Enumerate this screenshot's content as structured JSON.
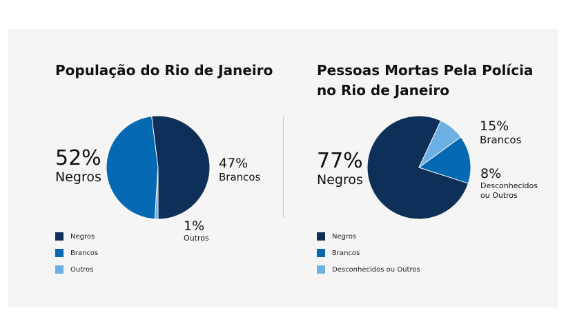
{
  "colors": {
    "negros": "#0e2f57",
    "brancos": "#0568b3",
    "outros": "#6db0e3"
  },
  "chart_data": [
    {
      "type": "pie",
      "title_lines": [
        "População do Rio de Janeiro"
      ],
      "categories": [
        "Negros",
        "Brancos",
        "Outros"
      ],
      "values": [
        52,
        47,
        1
      ],
      "labels": [
        {
          "pct": "52%",
          "name": "Negros"
        },
        {
          "pct": "47%",
          "name": "Brancos"
        },
        {
          "pct": "1%",
          "name": "Outros"
        }
      ],
      "legend": [
        "Negros",
        "Brancos",
        "Outros"
      ]
    },
    {
      "type": "pie",
      "title_lines": [
        "Pessoas Mortas Pela Polícia",
        "no Rio de Janeiro"
      ],
      "categories": [
        "Negros",
        "Brancos",
        "Desconhecidos ou Outros"
      ],
      "values": [
        77,
        15,
        8
      ],
      "labels": [
        {
          "pct": "77%",
          "name": "Negros"
        },
        {
          "pct": "15%",
          "name": "Brancos"
        },
        {
          "pct": "8%",
          "name_lines": [
            "Desconhecidos",
            "ou Outros"
          ]
        }
      ],
      "legend": [
        "Negros",
        "Brancos",
        "Desconhecidos ou Outros"
      ]
    }
  ]
}
